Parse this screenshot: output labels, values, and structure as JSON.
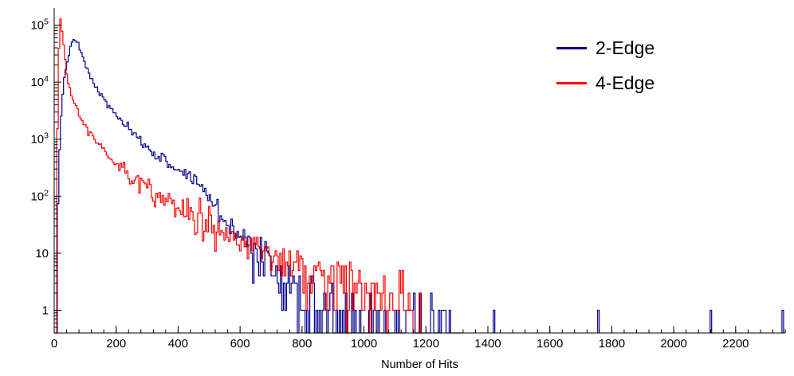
{
  "chart_data": {
    "type": "line",
    "title": "",
    "xlabel": "Number of Hits",
    "ylabel": "",
    "y_scale": "log",
    "grid": false,
    "x_range": [
      0,
      2360
    ],
    "y_range": [
      0.4,
      200000
    ],
    "x_major_ticks": [
      0,
      200,
      400,
      600,
      800,
      1000,
      1200,
      1400,
      1600,
      1800,
      2000,
      2200
    ],
    "x_minor_step": 40,
    "y_major_ticks": [
      1,
      10,
      100,
      1000,
      10000,
      100000
    ],
    "legend_position": "top-right",
    "axis_color": "#000000",
    "series": [
      {
        "name": "2-Edge",
        "color": "#00008b",
        "bin_width": 5,
        "x_start": 0,
        "x_end": 1315,
        "seed": 7,
        "noise_k": 1.6,
        "anchors": [
          [
            5,
            0.45
          ],
          [
            12,
            60
          ],
          [
            18,
            900
          ],
          [
            25,
            4500
          ],
          [
            32,
            11000
          ],
          [
            40,
            21000
          ],
          [
            50,
            36000
          ],
          [
            60,
            52000
          ],
          [
            68,
            55000
          ],
          [
            78,
            45000
          ],
          [
            90,
            29000
          ],
          [
            105,
            17500
          ],
          [
            120,
            11500
          ],
          [
            140,
            7200
          ],
          [
            160,
            5000
          ],
          [
            185,
            3300
          ],
          [
            210,
            2300
          ],
          [
            240,
            1500
          ],
          [
            270,
            1020
          ],
          [
            300,
            710
          ],
          [
            330,
            530
          ],
          [
            360,
            410
          ],
          [
            385,
            330
          ],
          [
            410,
            270
          ],
          [
            435,
            225
          ],
          [
            455,
            195
          ],
          [
            470,
            165
          ],
          [
            485,
            130
          ],
          [
            500,
            95
          ],
          [
            515,
            70
          ],
          [
            530,
            55
          ],
          [
            548,
            42
          ],
          [
            565,
            33
          ],
          [
            585,
            26
          ],
          [
            605,
            20
          ],
          [
            628,
            15
          ],
          [
            650,
            11.5
          ],
          [
            672,
            8.5
          ],
          [
            695,
            6.2
          ],
          [
            715,
            4.6
          ],
          [
            740,
            3.2
          ],
          [
            770,
            2.2
          ],
          [
            800,
            1.6
          ],
          [
            840,
            1.15
          ],
          [
            880,
            0.85
          ],
          [
            920,
            0.68
          ],
          [
            960,
            0.58
          ],
          [
            1010,
            0.5
          ],
          [
            1080,
            0.45
          ],
          [
            1160,
            0.42
          ],
          [
            1240,
            0.4
          ],
          [
            1315,
            0.38
          ]
        ],
        "extra_spikes": [
          [
            1420,
            1
          ],
          [
            1757,
            1
          ],
          [
            2120,
            1
          ],
          [
            2352,
            1
          ]
        ]
      },
      {
        "name": "4-Edge",
        "color": "#ff0000",
        "bin_width": 5,
        "x_start": 3,
        "x_end": 1185,
        "seed": 13,
        "noise_k": 2.2,
        "anchors": [
          [
            6,
            0.5
          ],
          [
            9,
            300
          ],
          [
            12,
            6000
          ],
          [
            15,
            30000
          ],
          [
            18,
            70000
          ],
          [
            21,
            125000
          ],
          [
            24,
            98000
          ],
          [
            28,
            62000
          ],
          [
            33,
            34000
          ],
          [
            38,
            19000
          ],
          [
            45,
            10500
          ],
          [
            52,
            7000
          ],
          [
            60,
            5200
          ],
          [
            70,
            3600
          ],
          [
            80,
            2700
          ],
          [
            92,
            2000
          ],
          [
            105,
            1500
          ],
          [
            120,
            1120
          ],
          [
            135,
            880
          ],
          [
            152,
            690
          ],
          [
            170,
            540
          ],
          [
            190,
            420
          ],
          [
            212,
            330
          ],
          [
            235,
            262
          ],
          [
            260,
            205
          ],
          [
            288,
            158
          ],
          [
            315,
            122
          ],
          [
            345,
            95
          ],
          [
            375,
            74
          ],
          [
            405,
            58
          ],
          [
            435,
            47
          ],
          [
            465,
            38
          ],
          [
            495,
            31
          ],
          [
            525,
            26
          ],
          [
            560,
            21
          ],
          [
            595,
            17
          ],
          [
            630,
            14
          ],
          [
            665,
            11.5
          ],
          [
            700,
            9.5
          ],
          [
            735,
            8
          ],
          [
            770,
            6.8
          ],
          [
            805,
            5.8
          ],
          [
            840,
            5
          ],
          [
            880,
            4.3
          ],
          [
            920,
            3.7
          ],
          [
            960,
            3.2
          ],
          [
            1000,
            2.8
          ],
          [
            1040,
            2.4
          ],
          [
            1080,
            2
          ],
          [
            1115,
            1.7
          ],
          [
            1150,
            1.4
          ],
          [
            1185,
            1.1
          ]
        ],
        "extra_spikes": []
      }
    ]
  }
}
